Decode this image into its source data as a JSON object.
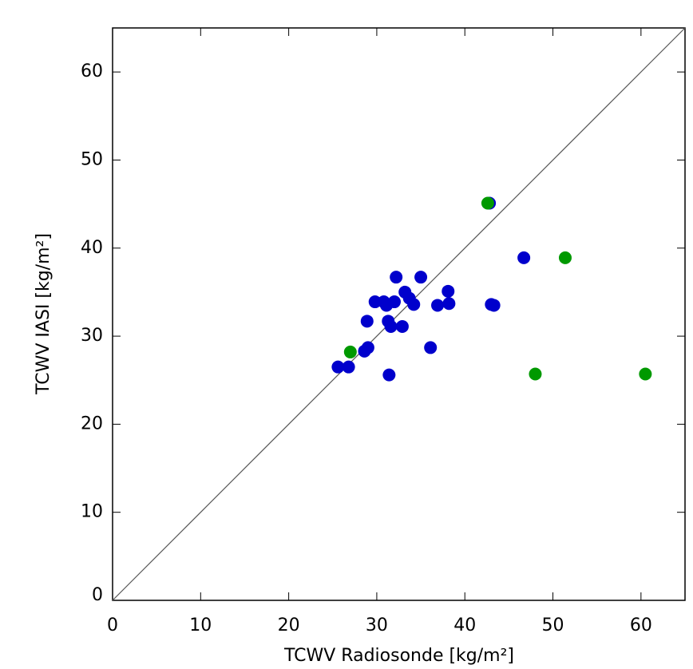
{
  "chart_data": {
    "type": "scatter",
    "xlabel": "TCWV Radiosonde [kg/m²]",
    "ylabel": "TCWV IASI [kg/m²]",
    "xlim": [
      0,
      65
    ],
    "ylim": [
      0,
      65
    ],
    "xticks": [
      0,
      10,
      20,
      30,
      40,
      50,
      60
    ],
    "yticks": [
      0,
      10,
      20,
      30,
      40,
      50,
      60
    ],
    "series": [
      {
        "color": "#0000cc",
        "x": [
          25.6,
          26.8,
          28.6,
          29.0,
          28.9,
          29.8,
          30.8,
          31.1,
          32.0,
          32.2,
          31.3,
          31.6,
          32.9,
          31.4,
          33.2,
          33.7,
          34.2,
          35.0,
          36.1,
          36.9,
          38.1,
          38.2,
          42.8,
          43.0,
          43.3,
          46.7
        ],
        "values": [
          26.5,
          26.5,
          28.3,
          28.7,
          31.7,
          33.9,
          33.9,
          33.5,
          33.9,
          36.7,
          31.7,
          31.1,
          31.1,
          25.6,
          35.0,
          34.3,
          33.6,
          36.7,
          28.7,
          33.5,
          35.1,
          33.7,
          45.1,
          33.6,
          33.5,
          38.9
        ]
      },
      {
        "color": "#009900",
        "x": [
          42.6,
          27.0,
          48.0,
          51.4,
          60.5
        ],
        "values": [
          45.1,
          28.2,
          25.7,
          38.9,
          25.7
        ]
      }
    ]
  }
}
